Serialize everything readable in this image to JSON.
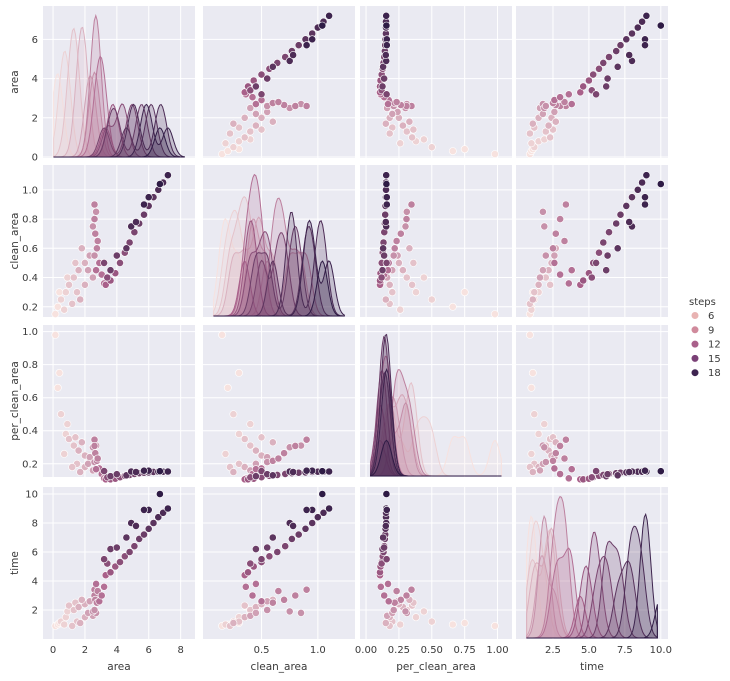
{
  "chart_data": {
    "type": "pairplot",
    "variables": [
      "area",
      "clean_area",
      "per_clean_area",
      "time"
    ],
    "axis_labels": {
      "area": "area",
      "clean_area": "clean_area",
      "per_clean_area": "per_clean_area",
      "time": "time"
    },
    "x_ranges": {
      "area": [
        -0.63,
        8.9
      ],
      "clean_area": [
        -0.02,
        1.33
      ],
      "per_clean_area": [
        -0.046,
        1.11
      ],
      "time": [
        -0.07,
        10.5
      ]
    },
    "y_ranges": {
      "area": [
        -0.05,
        7.7
      ],
      "clean_area": [
        0.13,
        1.17
      ],
      "per_clean_area": [
        0.12,
        1.04
      ],
      "time": [
        0.0,
        10.48
      ]
    },
    "x_ticks": {
      "area": [
        "0",
        "2",
        "4",
        "6",
        "8"
      ],
      "clean_area": [
        "0.5",
        "1.0"
      ],
      "per_clean_area": [
        "0.00",
        "0.25",
        "0.50",
        "0.75",
        "1.00"
      ],
      "time": [
        "2.5",
        "5.0",
        "7.5",
        "10.0"
      ]
    },
    "y_ticks": {
      "area": [
        "0",
        "2",
        "4",
        "6"
      ],
      "clean_area": [
        "0.2",
        "0.4",
        "0.6",
        "0.8",
        "1.0"
      ],
      "per_clean_area": [
        "0.2",
        "0.4",
        "0.6",
        "0.8",
        "1.0"
      ],
      "time": [
        "2",
        "4",
        "6",
        "8",
        "10"
      ]
    },
    "diagonal": "kde",
    "offdiagonal": "scatter",
    "grid": true,
    "hue": {
      "variable": "steps",
      "title": "steps",
      "legend_position": "right",
      "entries": [
        {
          "label": "6",
          "value": 6,
          "color": "#e8b3b2"
        },
        {
          "label": "9",
          "value": 9,
          "color": "#d08a9c"
        },
        {
          "label": "12",
          "value": 12,
          "color": "#a9608a"
        },
        {
          "label": "15",
          "value": 15,
          "color": "#7a4076"
        },
        {
          "label": "18",
          "value": 18,
          "color": "#3e2450"
        }
      ],
      "range": [
        3,
        19
      ],
      "light": "#f7e2df",
      "dark": "#2e1b45"
    },
    "record_fields": [
      "area",
      "clean_area",
      "per_clean_area",
      "time",
      "steps"
    ],
    "records": [
      [
        3.3,
        0.35,
        0.106,
        4.4,
        11
      ],
      [
        3.6,
        0.38,
        0.106,
        4.6,
        12
      ],
      [
        3.9,
        0.43,
        0.11,
        5.0,
        12
      ],
      [
        4.2,
        0.5,
        0.119,
        5.3,
        13
      ],
      [
        4.5,
        0.57,
        0.127,
        5.7,
        13
      ],
      [
        4.8,
        0.64,
        0.133,
        6.0,
        14
      ],
      [
        5.1,
        0.71,
        0.139,
        6.4,
        14
      ],
      [
        5.4,
        0.77,
        0.143,
        6.9,
        15
      ],
      [
        5.7,
        0.83,
        0.146,
        7.2,
        15
      ],
      [
        6.0,
        0.89,
        0.148,
        7.6,
        16
      ],
      [
        6.3,
        0.95,
        0.151,
        8.0,
        16
      ],
      [
        6.6,
        1.0,
        0.152,
        8.4,
        17
      ],
      [
        6.9,
        1.05,
        0.152,
        8.7,
        17
      ],
      [
        7.2,
        1.1,
        0.153,
        9.0,
        18
      ],
      [
        6.7,
        1.04,
        0.155,
        10.0,
        19
      ],
      [
        6.0,
        0.95,
        0.158,
        8.9,
        18
      ],
      [
        5.7,
        0.9,
        0.158,
        8.9,
        18
      ],
      [
        4.9,
        0.75,
        0.153,
        8.0,
        17
      ],
      [
        4.6,
        0.6,
        0.13,
        7.0,
        16
      ],
      [
        3.6,
        0.45,
        0.125,
        6.2,
        15
      ],
      [
        3.2,
        0.5,
        0.156,
        5.5,
        14
      ],
      [
        4.0,
        0.55,
        0.137,
        6.3,
        15
      ],
      [
        5.2,
        0.78,
        0.15,
        7.8,
        17
      ],
      [
        3.4,
        0.4,
        0.118,
        5.2,
        13
      ],
      [
        2.6,
        0.9,
        0.346,
        3.4,
        9
      ],
      [
        2.6,
        0.8,
        0.308,
        3.0,
        9
      ],
      [
        2.65,
        0.7,
        0.264,
        2.7,
        9
      ],
      [
        2.75,
        0.6,
        0.218,
        2.5,
        9
      ],
      [
        2.9,
        0.5,
        0.172,
        2.6,
        10
      ],
      [
        3.05,
        0.42,
        0.138,
        3.0,
        10
      ],
      [
        3.2,
        0.36,
        0.112,
        3.6,
        10
      ],
      [
        2.7,
        0.85,
        0.31,
        1.8,
        8
      ],
      [
        2.5,
        0.75,
        0.3,
        1.9,
        8
      ],
      [
        2.6,
        0.55,
        0.21,
        2.0,
        8
      ],
      [
        2.8,
        0.65,
        0.232,
        3.3,
        9
      ],
      [
        2.7,
        0.45,
        0.167,
        3.8,
        10
      ],
      [
        0.15,
        0.15,
        0.98,
        0.9,
        3
      ],
      [
        0.3,
        0.2,
        0.66,
        1.0,
        3
      ],
      [
        0.5,
        0.25,
        0.5,
        1.2,
        4
      ],
      [
        0.8,
        0.3,
        0.38,
        1.5,
        4
      ],
      [
        1.0,
        0.35,
        0.35,
        2.3,
        5
      ],
      [
        1.3,
        0.4,
        0.31,
        2.0,
        5
      ],
      [
        1.6,
        0.45,
        0.28,
        2.2,
        6
      ],
      [
        2.0,
        0.5,
        0.25,
        2.4,
        6
      ],
      [
        2.3,
        0.55,
        0.24,
        2.6,
        7
      ],
      [
        2.5,
        0.4,
        0.16,
        1.6,
        7
      ],
      [
        1.5,
        0.3,
        0.2,
        1.2,
        5
      ],
      [
        0.7,
        0.18,
        0.26,
        1.0,
        4
      ],
      [
        2.0,
        0.35,
        0.18,
        1.5,
        6
      ],
      [
        1.2,
        0.22,
        0.18,
        0.9,
        5
      ],
      [
        0.4,
        0.3,
        0.75,
        1.1,
        3
      ],
      [
        1.8,
        0.6,
        0.33,
        2.7,
        6
      ],
      [
        1.4,
        0.5,
        0.36,
        2.5,
        5
      ],
      [
        2.2,
        0.45,
        0.2,
        1.8,
        7
      ],
      [
        0.9,
        0.4,
        0.44,
        1.9,
        4
      ],
      [
        1.7,
        0.25,
        0.15,
        1.1,
        6
      ]
    ]
  }
}
